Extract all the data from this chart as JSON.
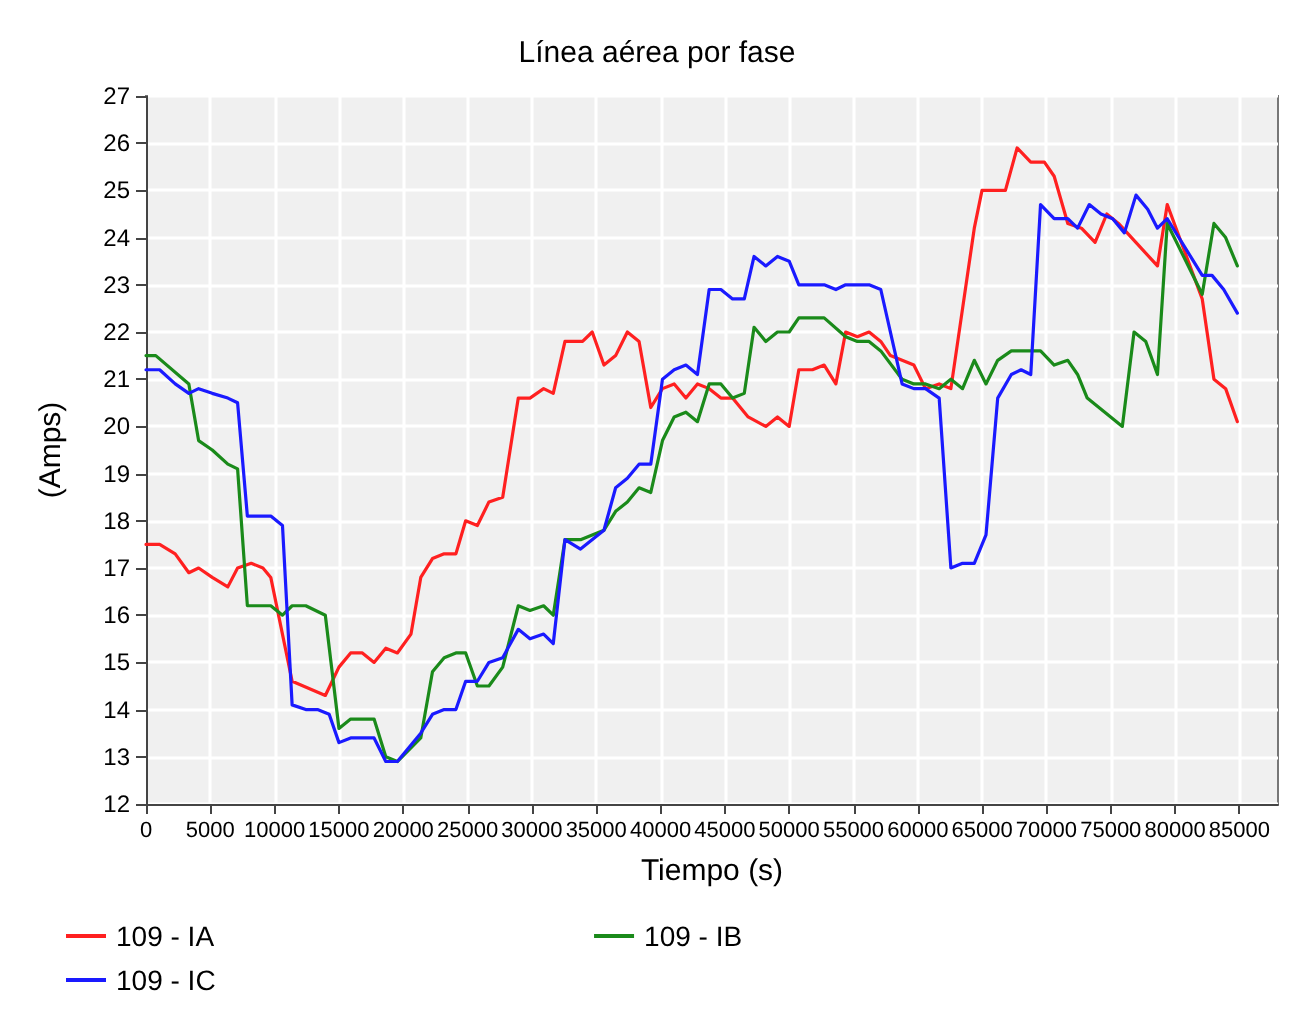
{
  "chart_data": {
    "type": "line",
    "title": "Línea aérea por fase",
    "xlabel": "Tiempo (s)",
    "ylabel": "(Amps)",
    "xlim": [
      0,
      88000
    ],
    "ylim": [
      12,
      27
    ],
    "xticks": [
      0,
      5000,
      10000,
      15000,
      20000,
      25000,
      30000,
      35000,
      40000,
      45000,
      50000,
      55000,
      60000,
      65000,
      70000,
      75000,
      80000,
      85000
    ],
    "yticks": [
      12,
      13,
      14,
      15,
      16,
      17,
      18,
      19,
      20,
      21,
      22,
      23,
      24,
      25,
      26,
      27
    ],
    "grid": true,
    "legend": "bottom",
    "marker": "none",
    "line_style": "solid",
    "series": [
      {
        "name": "109 - IA",
        "color": "#ff2020",
        "x": [
          0,
          1060,
          2270,
          3330,
          4090,
          5150,
          6360,
          7120,
          8180,
          9090,
          9700,
          11360,
          13940,
          15000,
          15910,
          16820,
          17730,
          18640,
          19540,
          20600,
          21360,
          22270,
          23180,
          24090,
          24850,
          25760,
          26660,
          27730,
          28940,
          29850,
          30910,
          31660,
          32570,
          33940,
          34690,
          35600,
          36510,
          37420,
          38330,
          39240,
          40150,
          41060,
          41970,
          42870,
          43780,
          44690,
          45600,
          46810,
          48180,
          49090,
          50000,
          50750,
          51810,
          52720,
          53630,
          54390,
          55300,
          56210,
          57120,
          57870,
          58780,
          59690,
          60600,
          61660,
          62570,
          64390,
          64990,
          66810,
          67720,
          68780,
          69840,
          70600,
          71660,
          72720,
          73780,
          74690,
          75600,
          78630,
          79390,
          82110,
          83020,
          83930,
          84840
        ],
        "values": [
          17.5,
          17.5,
          17.3,
          16.9,
          17.0,
          16.8,
          16.6,
          17.0,
          17.1,
          17.0,
          16.8,
          14.6,
          14.3,
          14.9,
          15.2,
          15.2,
          15.0,
          15.3,
          15.2,
          15.6,
          16.8,
          17.2,
          17.3,
          17.3,
          18.0,
          17.9,
          18.4,
          18.5,
          20.6,
          20.6,
          20.8,
          20.7,
          21.8,
          21.8,
          22.0,
          21.3,
          21.5,
          22.0,
          21.8,
          20.4,
          20.8,
          20.9,
          20.6,
          20.9,
          20.8,
          20.6,
          20.6,
          20.2,
          20.0,
          20.2,
          20.0,
          21.2,
          21.2,
          21.3,
          20.9,
          22.0,
          21.9,
          22.0,
          21.8,
          21.5,
          21.4,
          21.3,
          20.8,
          20.9,
          20.8,
          24.2,
          25.0,
          25.0,
          25.9,
          25.6,
          25.6,
          25.3,
          24.3,
          24.2,
          23.9,
          24.5,
          24.3,
          23.4,
          24.7,
          22.7,
          21.0,
          20.8,
          20.1
        ]
      },
      {
        "name": "109 - IB",
        "color": "#1a8a1a",
        "x": [
          0,
          760,
          3330,
          4090,
          5150,
          6360,
          7120,
          7880,
          9700,
          10610,
          11360,
          12420,
          13940,
          15000,
          15910,
          17730,
          18640,
          19540,
          21360,
          22270,
          23180,
          24090,
          24850,
          25760,
          26660,
          27730,
          28940,
          29850,
          30910,
          31660,
          32570,
          33780,
          35600,
          36510,
          37420,
          38330,
          39240,
          40150,
          41060,
          41970,
          42870,
          43780,
          44690,
          45600,
          46510,
          47270,
          48180,
          49090,
          50000,
          50750,
          52720,
          54390,
          55300,
          56210,
          57120,
          58780,
          59690,
          60600,
          61660,
          62570,
          63480,
          64390,
          65300,
          66210,
          67270,
          69540,
          70600,
          71660,
          72420,
          73170,
          75900,
          76810,
          77720,
          78630,
          79390,
          82110,
          83020,
          83930,
          84840
        ],
        "values": [
          21.5,
          21.5,
          20.9,
          19.7,
          19.5,
          19.2,
          19.1,
          16.2,
          16.2,
          16.0,
          16.2,
          16.2,
          16.0,
          13.6,
          13.8,
          13.8,
          13.0,
          12.9,
          13.4,
          14.8,
          15.1,
          15.2,
          15.2,
          14.5,
          14.5,
          14.9,
          16.2,
          16.1,
          16.2,
          16.0,
          17.6,
          17.6,
          17.8,
          18.2,
          18.4,
          18.7,
          18.6,
          19.7,
          20.2,
          20.3,
          20.1,
          20.9,
          20.9,
          20.6,
          20.7,
          22.1,
          21.8,
          22.0,
          22.0,
          22.3,
          22.3,
          21.9,
          21.8,
          21.8,
          21.6,
          21.0,
          20.9,
          20.9,
          20.8,
          21.0,
          20.8,
          21.4,
          20.9,
          21.4,
          21.6,
          21.6,
          21.3,
          21.4,
          21.1,
          20.6,
          20.0,
          22.0,
          21.8,
          21.1,
          24.3,
          22.8,
          24.3,
          24.0,
          23.4
        ]
      },
      {
        "name": "109 - IC",
        "color": "#1a1aff",
        "x": [
          0,
          1060,
          2270,
          3330,
          4090,
          5150,
          6360,
          7120,
          7880,
          9700,
          10610,
          11360,
          12420,
          13330,
          14240,
          15000,
          15910,
          17730,
          18640,
          19540,
          21360,
          22270,
          23180,
          24090,
          24850,
          25760,
          26660,
          27730,
          28940,
          29850,
          30910,
          31660,
          32570,
          33780,
          35600,
          36510,
          37420,
          38330,
          39240,
          40150,
          41060,
          41970,
          42870,
          43780,
          44690,
          45600,
          46510,
          47270,
          48180,
          49090,
          50000,
          50750,
          52720,
          53630,
          54390,
          56210,
          57120,
          58780,
          59690,
          60600,
          61660,
          62570,
          63480,
          64390,
          65300,
          66210,
          67270,
          68030,
          68780,
          69540,
          70600,
          71660,
          72420,
          73330,
          74240,
          75150,
          76060,
          76960,
          77870,
          78630,
          79390,
          82110,
          82870,
          83780,
          84840
        ],
        "values": [
          21.2,
          21.2,
          20.9,
          20.7,
          20.8,
          20.7,
          20.6,
          20.5,
          18.1,
          18.1,
          17.9,
          14.1,
          14.0,
          14.0,
          13.9,
          13.3,
          13.4,
          13.4,
          12.9,
          12.9,
          13.5,
          13.9,
          14.0,
          14.0,
          14.6,
          14.6,
          15.0,
          15.1,
          15.7,
          15.5,
          15.6,
          15.4,
          17.6,
          17.4,
          17.8,
          18.7,
          18.9,
          19.2,
          19.2,
          21.0,
          21.2,
          21.3,
          21.1,
          22.9,
          22.9,
          22.7,
          22.7,
          23.6,
          23.4,
          23.6,
          23.5,
          23.0,
          23.0,
          22.9,
          23.0,
          23.0,
          22.9,
          20.9,
          20.8,
          20.8,
          20.6,
          17.0,
          17.1,
          17.1,
          17.7,
          20.6,
          21.1,
          21.2,
          21.1,
          24.7,
          24.4,
          24.4,
          24.2,
          24.7,
          24.5,
          24.4,
          24.1,
          24.9,
          24.6,
          24.2,
          24.4,
          23.2,
          23.2,
          22.9,
          22.4
        ]
      }
    ]
  }
}
